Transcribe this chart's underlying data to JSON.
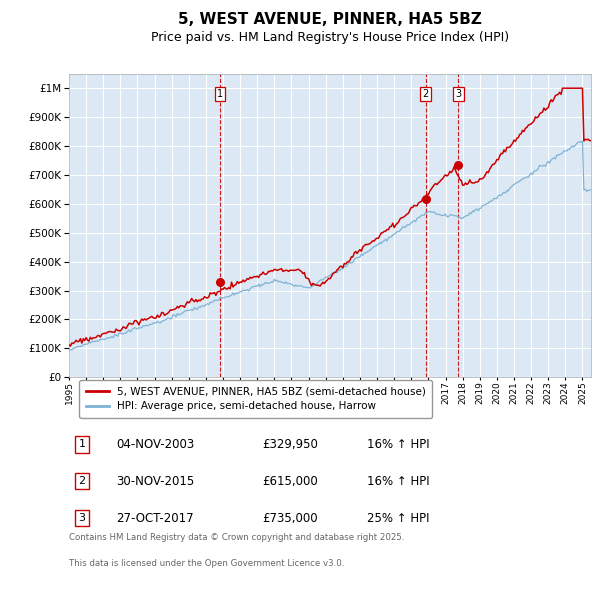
{
  "title": "5, WEST AVENUE, PINNER, HA5 5BZ",
  "subtitle": "Price paid vs. HM Land Registry's House Price Index (HPI)",
  "legend_entry1": "5, WEST AVENUE, PINNER, HA5 5BZ (semi-detached house)",
  "legend_entry2": "HPI: Average price, semi-detached house, Harrow",
  "transactions": [
    {
      "num": 1,
      "date": "04-NOV-2003",
      "price": 329950,
      "pct": "16%",
      "dir": "↑"
    },
    {
      "num": 2,
      "date": "30-NOV-2015",
      "price": 615000,
      "pct": "16%",
      "dir": "↑"
    },
    {
      "num": 3,
      "date": "27-OCT-2017",
      "price": 735000,
      "pct": "25%",
      "dir": "↑"
    }
  ],
  "footnote1": "Contains HM Land Registry data © Crown copyright and database right 2025.",
  "footnote2": "This data is licensed under the Open Government Licence v3.0.",
  "ylim_max": 1050000,
  "plot_bg_color": "#dce9f5",
  "red_line_color": "#cc0000",
  "blue_line_color": "#7fb3d3",
  "vline_color": "#cc0000",
  "marker_color": "#cc0000",
  "grid_color": "#ffffff",
  "title_fontsize": 11,
  "subtitle_fontsize": 9
}
